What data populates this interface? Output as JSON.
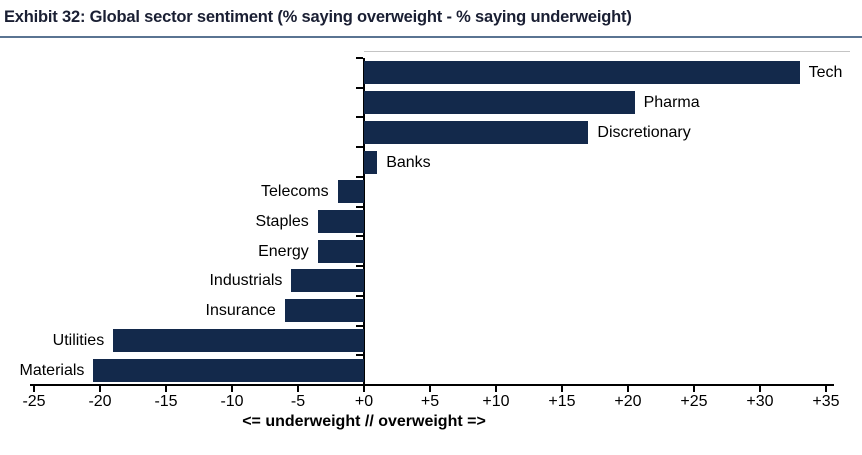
{
  "header": {
    "title": "Exhibit 32: Global sector sentiment (% saying overweight - % saying underweight)"
  },
  "chart_data": {
    "type": "bar",
    "orientation": "horizontal",
    "title": "Exhibit 32: Global sector sentiment (% saying overweight - % saying underweight)",
    "categories": [
      "Tech",
      "Pharma",
      "Discretionary",
      "Banks",
      "Telecoms",
      "Staples",
      "Energy",
      "Industrials",
      "Insurance",
      "Utilities",
      "Materials"
    ],
    "values": [
      33,
      20.5,
      17,
      1,
      -2,
      -3.5,
      -3.5,
      -5.5,
      -6,
      -19,
      -20.5
    ],
    "xlabel": "<= underweight // overweight =>",
    "xlim": [
      -25,
      35
    ],
    "xticks": [
      -25,
      -20,
      -15,
      -10,
      -5,
      0,
      5,
      10,
      15,
      20,
      25,
      30,
      35
    ],
    "xtick_labels": [
      "-25",
      "-20",
      "-15",
      "-10",
      "-5",
      "+0",
      "+5",
      "+10",
      "+15",
      "+20",
      "+25",
      "+30",
      "+35"
    ],
    "grid": false,
    "legend": false,
    "bar_color": "#13294b",
    "axis_color": "#000000",
    "label_color": "#000000"
  },
  "style": {
    "title_color": "#1a1f33",
    "underline_color": "#5a7492",
    "background": "#ffffff"
  }
}
